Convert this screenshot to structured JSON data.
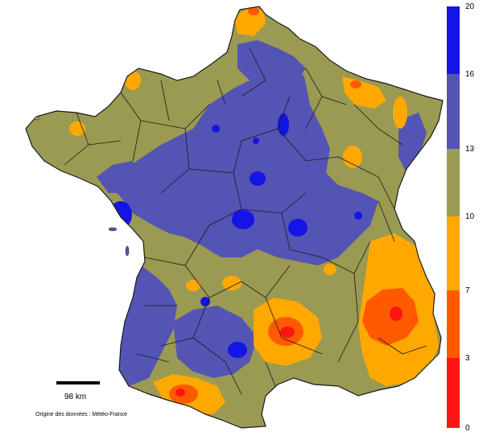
{
  "map": {
    "subject": "France",
    "colors": {
      "land_base": "#9a9a52",
      "borders": "#1a1a1a",
      "sea": "#ffffff"
    },
    "zones": [
      {
        "class": "13-16",
        "color": "#5454b4"
      },
      {
        "class": "16-20",
        "color": "#1414e6"
      },
      {
        "class": "7-10",
        "color": "#ffa800"
      },
      {
        "class": "3-7",
        "color": "#ff5a00"
      },
      {
        "class": "0-3",
        "color": "#ff1414"
      }
    ]
  },
  "legend": {
    "ticks": [
      "20",
      "16",
      "13",
      "10",
      "7",
      "3",
      "0"
    ],
    "classes": [
      {
        "from": 16,
        "to": 20,
        "color": "#1414e6"
      },
      {
        "from": 13,
        "to": 16,
        "color": "#5454b4"
      },
      {
        "from": 10,
        "to": 13,
        "color": "#9a9a52"
      },
      {
        "from": 7,
        "to": 10,
        "color": "#ffa800"
      },
      {
        "from": 3,
        "to": 7,
        "color": "#ff5a00"
      },
      {
        "from": 0,
        "to": 3,
        "color": "#ff1414"
      }
    ]
  },
  "scale_bar": {
    "label": "98 km"
  },
  "source": {
    "text": "Origine des données : Météo-France"
  }
}
